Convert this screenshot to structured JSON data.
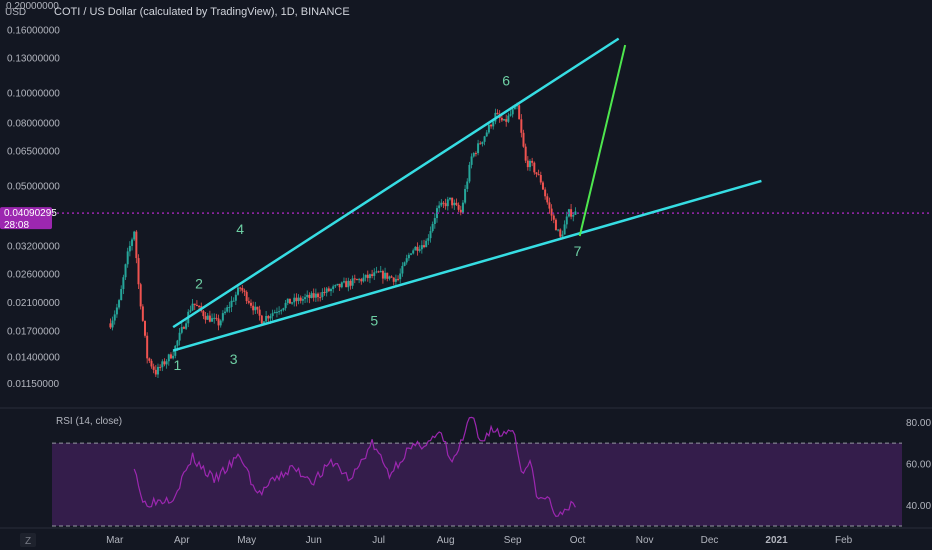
{
  "header": {
    "title": "COTI / US Dollar (calculated by TradingView), 1D, BINANCE",
    "currency": "USD",
    "top_price": "0.20000000"
  },
  "price_badge": {
    "price": "0.04090295",
    "countdown": "28:08"
  },
  "rsi_label": "RSI (14, close)",
  "footer": {
    "timezone_icon": "Z"
  },
  "colors": {
    "background": "#131722",
    "up": "#26a69a",
    "down": "#ef5350",
    "trendline": "#36dde3",
    "projection": "#4ee74e",
    "rsi": "#9c27b0",
    "badge": "#9c27b0"
  },
  "chart_data": [
    {
      "type": "candlestick",
      "title": "COTI / US Dollar (calculated by TradingView), 1D, BINANCE",
      "y_scale": "log",
      "ylim": [
        0.0098,
        0.2
      ],
      "y_tick_labels": [
        "0.16000000",
        "0.13000000",
        "0.10000000",
        "0.08000000",
        "0.06500000",
        "0.05000000",
        "0.03200000",
        "0.02600000",
        "0.02100000",
        "0.01700000",
        "0.01400000",
        "0.01150000"
      ],
      "x_tick_labels": [
        "Mar",
        "Apr",
        "May",
        "Jun",
        "Jul",
        "Aug",
        "Sep",
        "Oct",
        "Nov",
        "Dec",
        "2021",
        "Feb"
      ],
      "x_range": [
        "2020-02-01",
        "2021-02-28"
      ],
      "data_range": [
        "2020-02-28",
        "2020-09-30"
      ],
      "anchors": [
        {
          "date": "2020-02-28",
          "price": 0.018
        },
        {
          "date": "2020-03-03",
          "price": 0.021
        },
        {
          "date": "2020-03-07",
          "price": 0.03
        },
        {
          "date": "2020-03-10",
          "price": 0.036
        },
        {
          "date": "2020-03-12",
          "price": 0.024
        },
        {
          "date": "2020-03-16",
          "price": 0.014
        },
        {
          "date": "2020-03-20",
          "price": 0.0125
        },
        {
          "date": "2020-03-28",
          "price": 0.0145
        },
        {
          "date": "2020-04-06",
          "price": 0.021
        },
        {
          "date": "2020-04-12",
          "price": 0.019
        },
        {
          "date": "2020-04-18",
          "price": 0.018
        },
        {
          "date": "2020-04-28",
          "price": 0.0235
        },
        {
          "date": "2020-05-08",
          "price": 0.0185
        },
        {
          "date": "2020-05-20",
          "price": 0.021
        },
        {
          "date": "2020-06-01",
          "price": 0.022
        },
        {
          "date": "2020-06-15",
          "price": 0.024
        },
        {
          "date": "2020-07-01",
          "price": 0.026
        },
        {
          "date": "2020-07-10",
          "price": 0.025
        },
        {
          "date": "2020-07-16",
          "price": 0.031
        },
        {
          "date": "2020-07-23",
          "price": 0.033
        },
        {
          "date": "2020-07-28",
          "price": 0.042
        },
        {
          "date": "2020-08-03",
          "price": 0.045
        },
        {
          "date": "2020-08-08",
          "price": 0.041
        },
        {
          "date": "2020-08-13",
          "price": 0.062
        },
        {
          "date": "2020-08-20",
          "price": 0.075
        },
        {
          "date": "2020-08-24",
          "price": 0.085
        },
        {
          "date": "2020-08-28",
          "price": 0.08
        },
        {
          "date": "2020-09-01",
          "price": 0.087
        },
        {
          "date": "2020-09-03",
          "price": 0.09
        },
        {
          "date": "2020-09-07",
          "price": 0.06
        },
        {
          "date": "2020-09-10",
          "price": 0.058
        },
        {
          "date": "2020-09-14",
          "price": 0.052
        },
        {
          "date": "2020-09-18",
          "price": 0.042
        },
        {
          "date": "2020-09-23",
          "price": 0.034
        },
        {
          "date": "2020-09-27",
          "price": 0.041
        },
        {
          "date": "2020-09-30",
          "price": 0.0409
        }
      ],
      "trendlines": [
        {
          "name": "upper",
          "from": {
            "date": "2020-03-28",
            "price": 0.0175
          },
          "to": {
            "date": "2020-10-20",
            "price": 0.15
          }
        },
        {
          "name": "lower",
          "from": {
            "date": "2020-03-28",
            "price": 0.0147
          },
          "to": {
            "date": "2020-12-25",
            "price": 0.052
          }
        }
      ],
      "projection": {
        "from": {
          "date": "2020-10-02",
          "price": 0.0345
        },
        "to": {
          "date": "2020-10-23",
          "price": 0.143
        }
      },
      "wave_labels": [
        {
          "text": "1",
          "date": "2020-03-30",
          "price": 0.0127
        },
        {
          "text": "2",
          "date": "2020-04-09",
          "price": 0.0233
        },
        {
          "text": "3",
          "date": "2020-04-25",
          "price": 0.0133
        },
        {
          "text": "4",
          "date": "2020-04-28",
          "price": 0.035
        },
        {
          "text": "5",
          "date": "2020-06-29",
          "price": 0.0177
        },
        {
          "text": "6",
          "date": "2020-08-29",
          "price": 0.106
        },
        {
          "text": "7",
          "date": "2020-10-01",
          "price": 0.0297
        }
      ],
      "last_price_line": 0.04090295
    },
    {
      "type": "line",
      "title": "RSI (14, close)",
      "ylim": [
        30,
        85
      ],
      "y_tick_labels": [
        "80.00",
        "60.00",
        "40.00"
      ],
      "bands": [
        30,
        70
      ],
      "x_range": [
        "2020-02-01",
        "2021-02-28"
      ],
      "anchors": [
        {
          "date": "2020-03-10",
          "value": 60
        },
        {
          "date": "2020-03-14",
          "value": 41
        },
        {
          "date": "2020-03-20",
          "value": 42
        },
        {
          "date": "2020-03-28",
          "value": 44
        },
        {
          "date": "2020-04-06",
          "value": 63
        },
        {
          "date": "2020-04-16",
          "value": 52
        },
        {
          "date": "2020-04-28",
          "value": 64
        },
        {
          "date": "2020-05-06",
          "value": 45
        },
        {
          "date": "2020-05-14",
          "value": 52
        },
        {
          "date": "2020-05-22",
          "value": 58
        },
        {
          "date": "2020-06-01",
          "value": 52
        },
        {
          "date": "2020-06-10",
          "value": 61
        },
        {
          "date": "2020-06-18",
          "value": 52
        },
        {
          "date": "2020-06-28",
          "value": 70
        },
        {
          "date": "2020-07-06",
          "value": 55
        },
        {
          "date": "2020-07-14",
          "value": 66
        },
        {
          "date": "2020-07-22",
          "value": 70
        },
        {
          "date": "2020-07-30",
          "value": 74
        },
        {
          "date": "2020-08-04",
          "value": 60
        },
        {
          "date": "2020-08-09",
          "value": 72
        },
        {
          "date": "2020-08-13",
          "value": 83
        },
        {
          "date": "2020-08-17",
          "value": 70
        },
        {
          "date": "2020-08-22",
          "value": 77
        },
        {
          "date": "2020-08-27",
          "value": 74
        },
        {
          "date": "2020-09-01",
          "value": 78
        },
        {
          "date": "2020-09-05",
          "value": 57
        },
        {
          "date": "2020-09-09",
          "value": 60
        },
        {
          "date": "2020-09-13",
          "value": 42
        },
        {
          "date": "2020-09-17",
          "value": 44
        },
        {
          "date": "2020-09-22",
          "value": 33
        },
        {
          "date": "2020-09-26",
          "value": 40
        },
        {
          "date": "2020-09-30",
          "value": 39
        }
      ]
    }
  ]
}
